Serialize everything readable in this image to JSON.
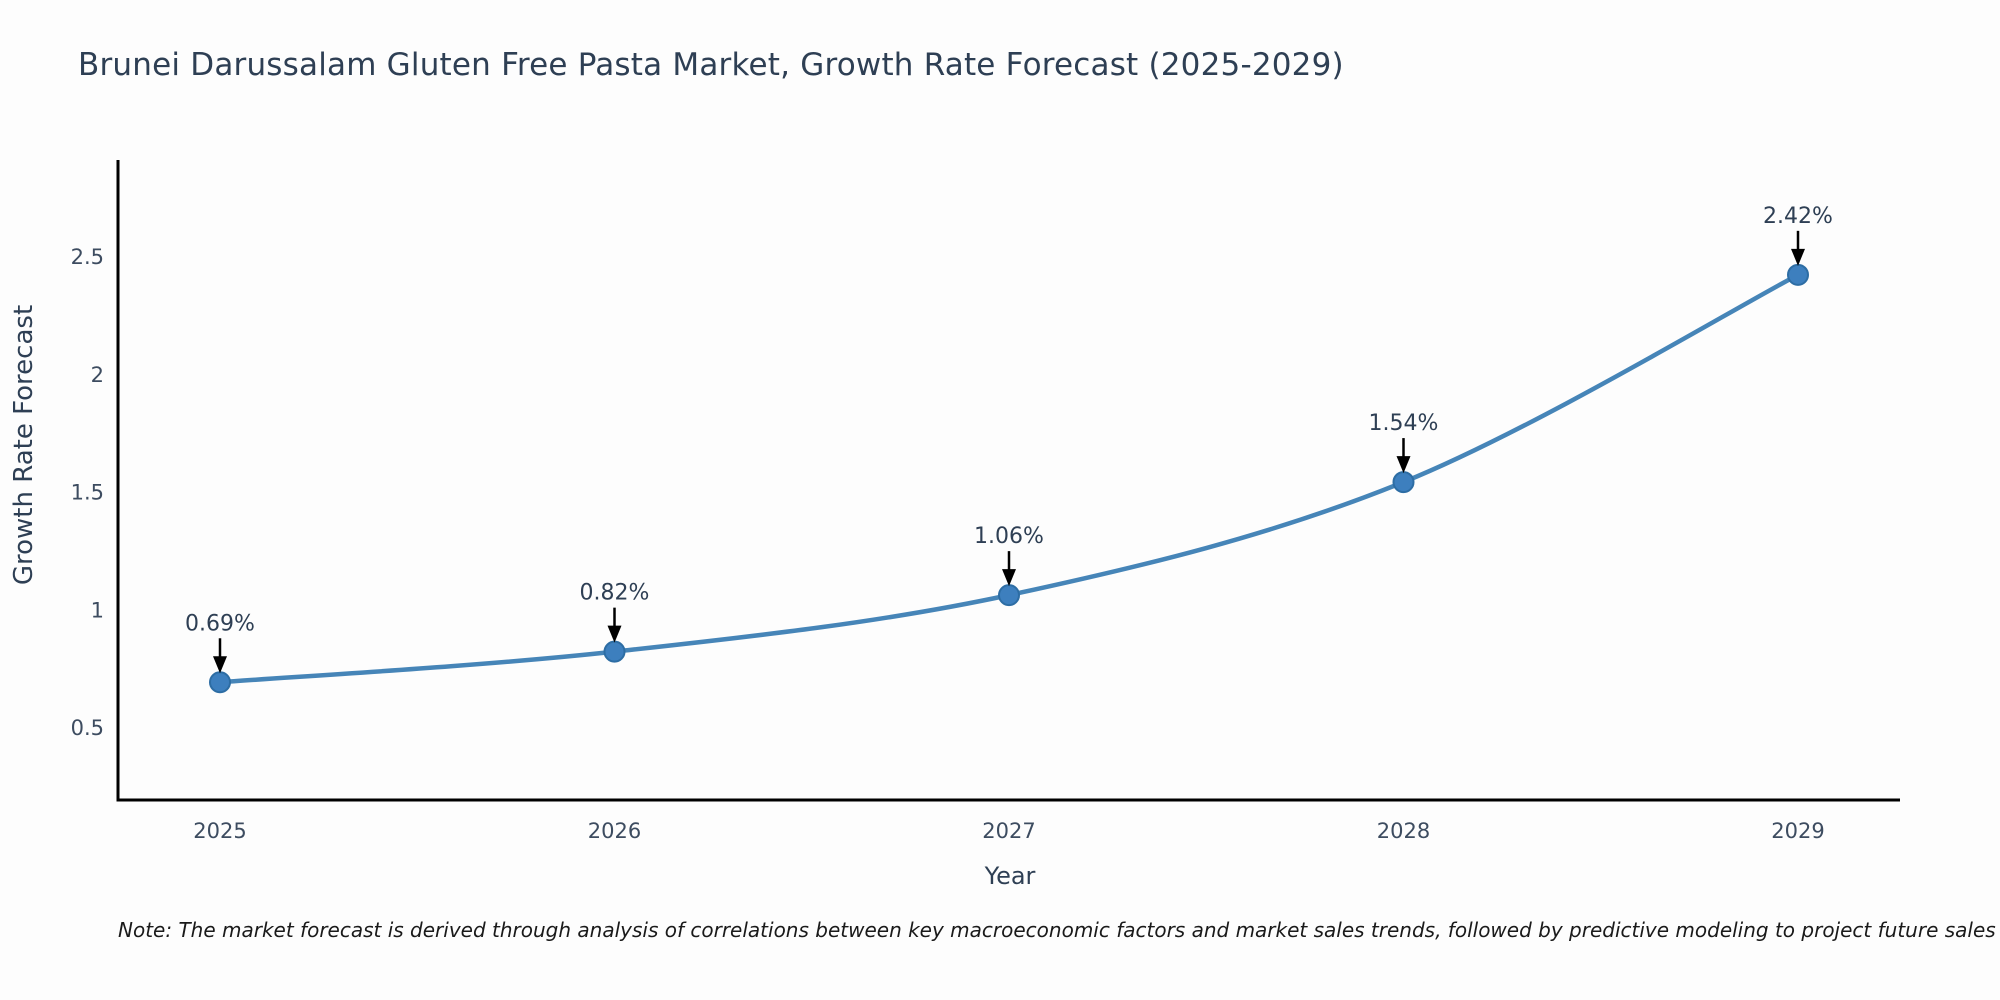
{
  "title": "Brunei Darussalam Gluten Free Pasta Market, Growth Rate Forecast (2025-2029)",
  "note": "Note: The market forecast is derived through analysis of correlations between key macroeconomic factors and market sales trends, followed by predictive modeling to project future sales",
  "chart_data": {
    "type": "line",
    "title": "Brunei Darussalam Gluten Free Pasta Market, Growth Rate Forecast (2025-2029)",
    "xlabel": "Year",
    "ylabel": "Growth Rate Forecast",
    "categories": [
      "2025",
      "2026",
      "2027",
      "2028",
      "2029"
    ],
    "values": [
      0.69,
      0.82,
      1.06,
      1.54,
      2.42
    ],
    "point_labels": [
      "0.69%",
      "0.82%",
      "1.06%",
      "1.54%",
      "2.42%"
    ],
    "y_ticks": [
      0.5,
      1,
      1.5,
      2,
      2.5
    ],
    "ylim": [
      0.19,
      2.91
    ],
    "grid": false,
    "legend": false,
    "curve": "smooth",
    "annotations": "value labels with down arrows above each marker"
  },
  "colors": {
    "line": "#4685b8",
    "marker_fill": "#3d7fbe",
    "marker_edge": "#2d6da4",
    "axis": "#000000",
    "arrow": "#000000",
    "title_text": "#2e3f54",
    "tick_text": "#3d4c60",
    "note_text": "#1a1a1a",
    "background": "#fdfdfd"
  }
}
